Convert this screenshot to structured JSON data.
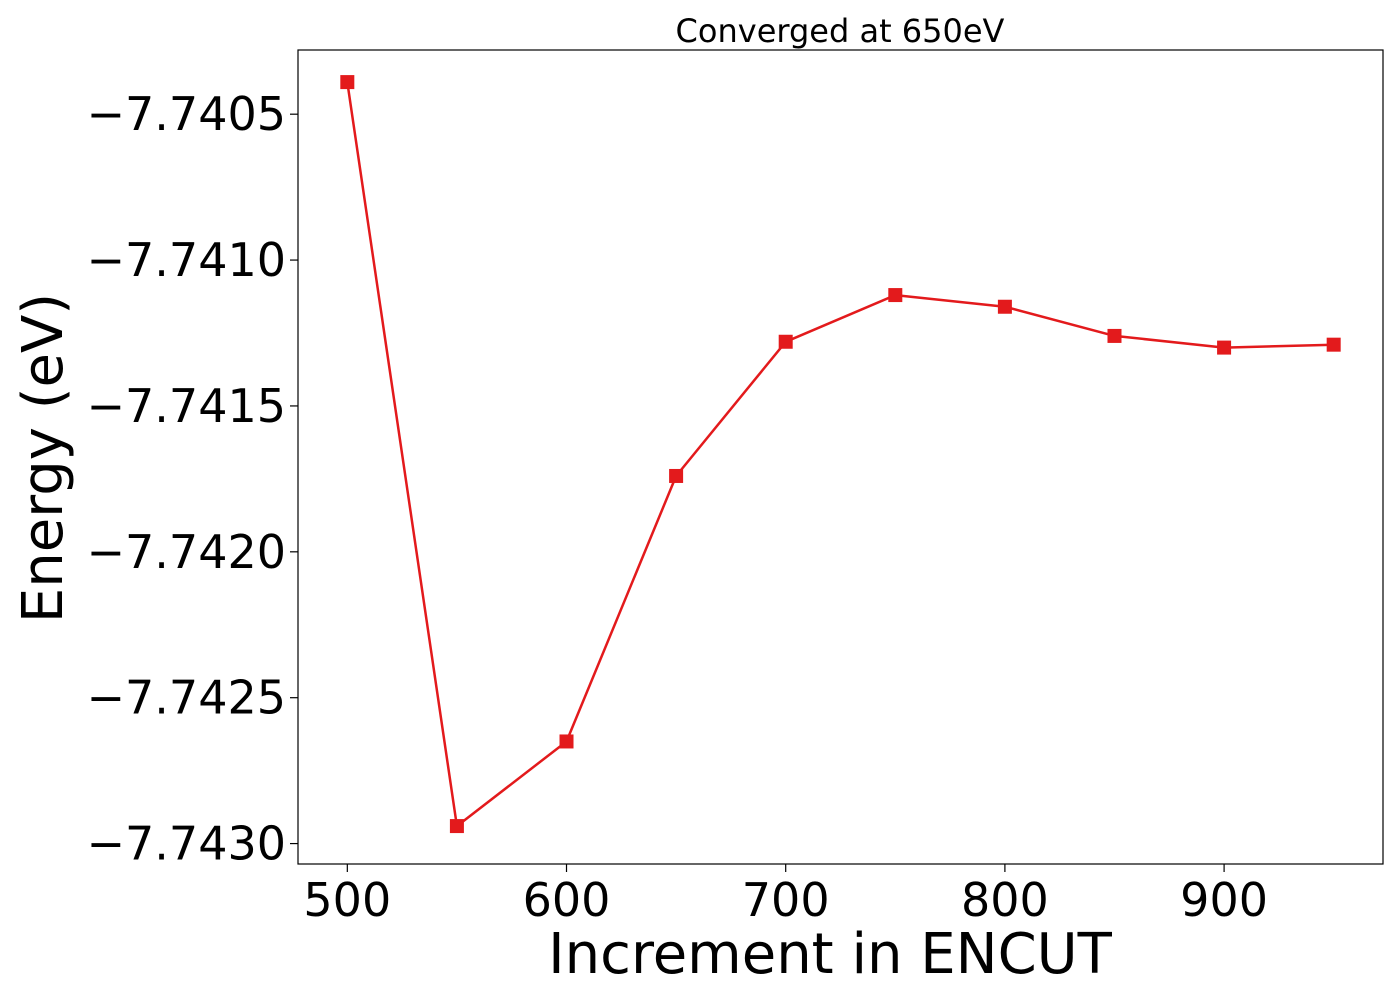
{
  "chart_data": {
    "type": "line",
    "title": "Converged at 650eV",
    "xlabel": "Increment in ENCUT",
    "ylabel": "Energy (eV)",
    "x": [
      500,
      550,
      600,
      650,
      700,
      750,
      800,
      850,
      900,
      950
    ],
    "series": [
      {
        "values": [
          -7.74039,
          -7.74294,
          -7.74265,
          -7.74174,
          -7.74128,
          -7.74112,
          -7.74116,
          -7.74126,
          -7.7413,
          -7.74129
        ],
        "color": "#e31a1c",
        "marker": "square"
      }
    ],
    "xticks": [
      500,
      600,
      700,
      800,
      900
    ],
    "xtick_labels": [
      "500",
      "600",
      "700",
      "800",
      "900"
    ],
    "yticks": [
      -7.7405,
      -7.741,
      -7.7415,
      -7.742,
      -7.7425,
      -7.743
    ],
    "ytick_labels": [
      "−7.7405",
      "−7.7410",
      "−7.7415",
      "−7.7420",
      "−7.7425",
      "−7.7430"
    ],
    "xlim": [
      477.5,
      972.5
    ],
    "ylim": [
      -7.74307,
      -7.74028
    ],
    "grid": false
  }
}
